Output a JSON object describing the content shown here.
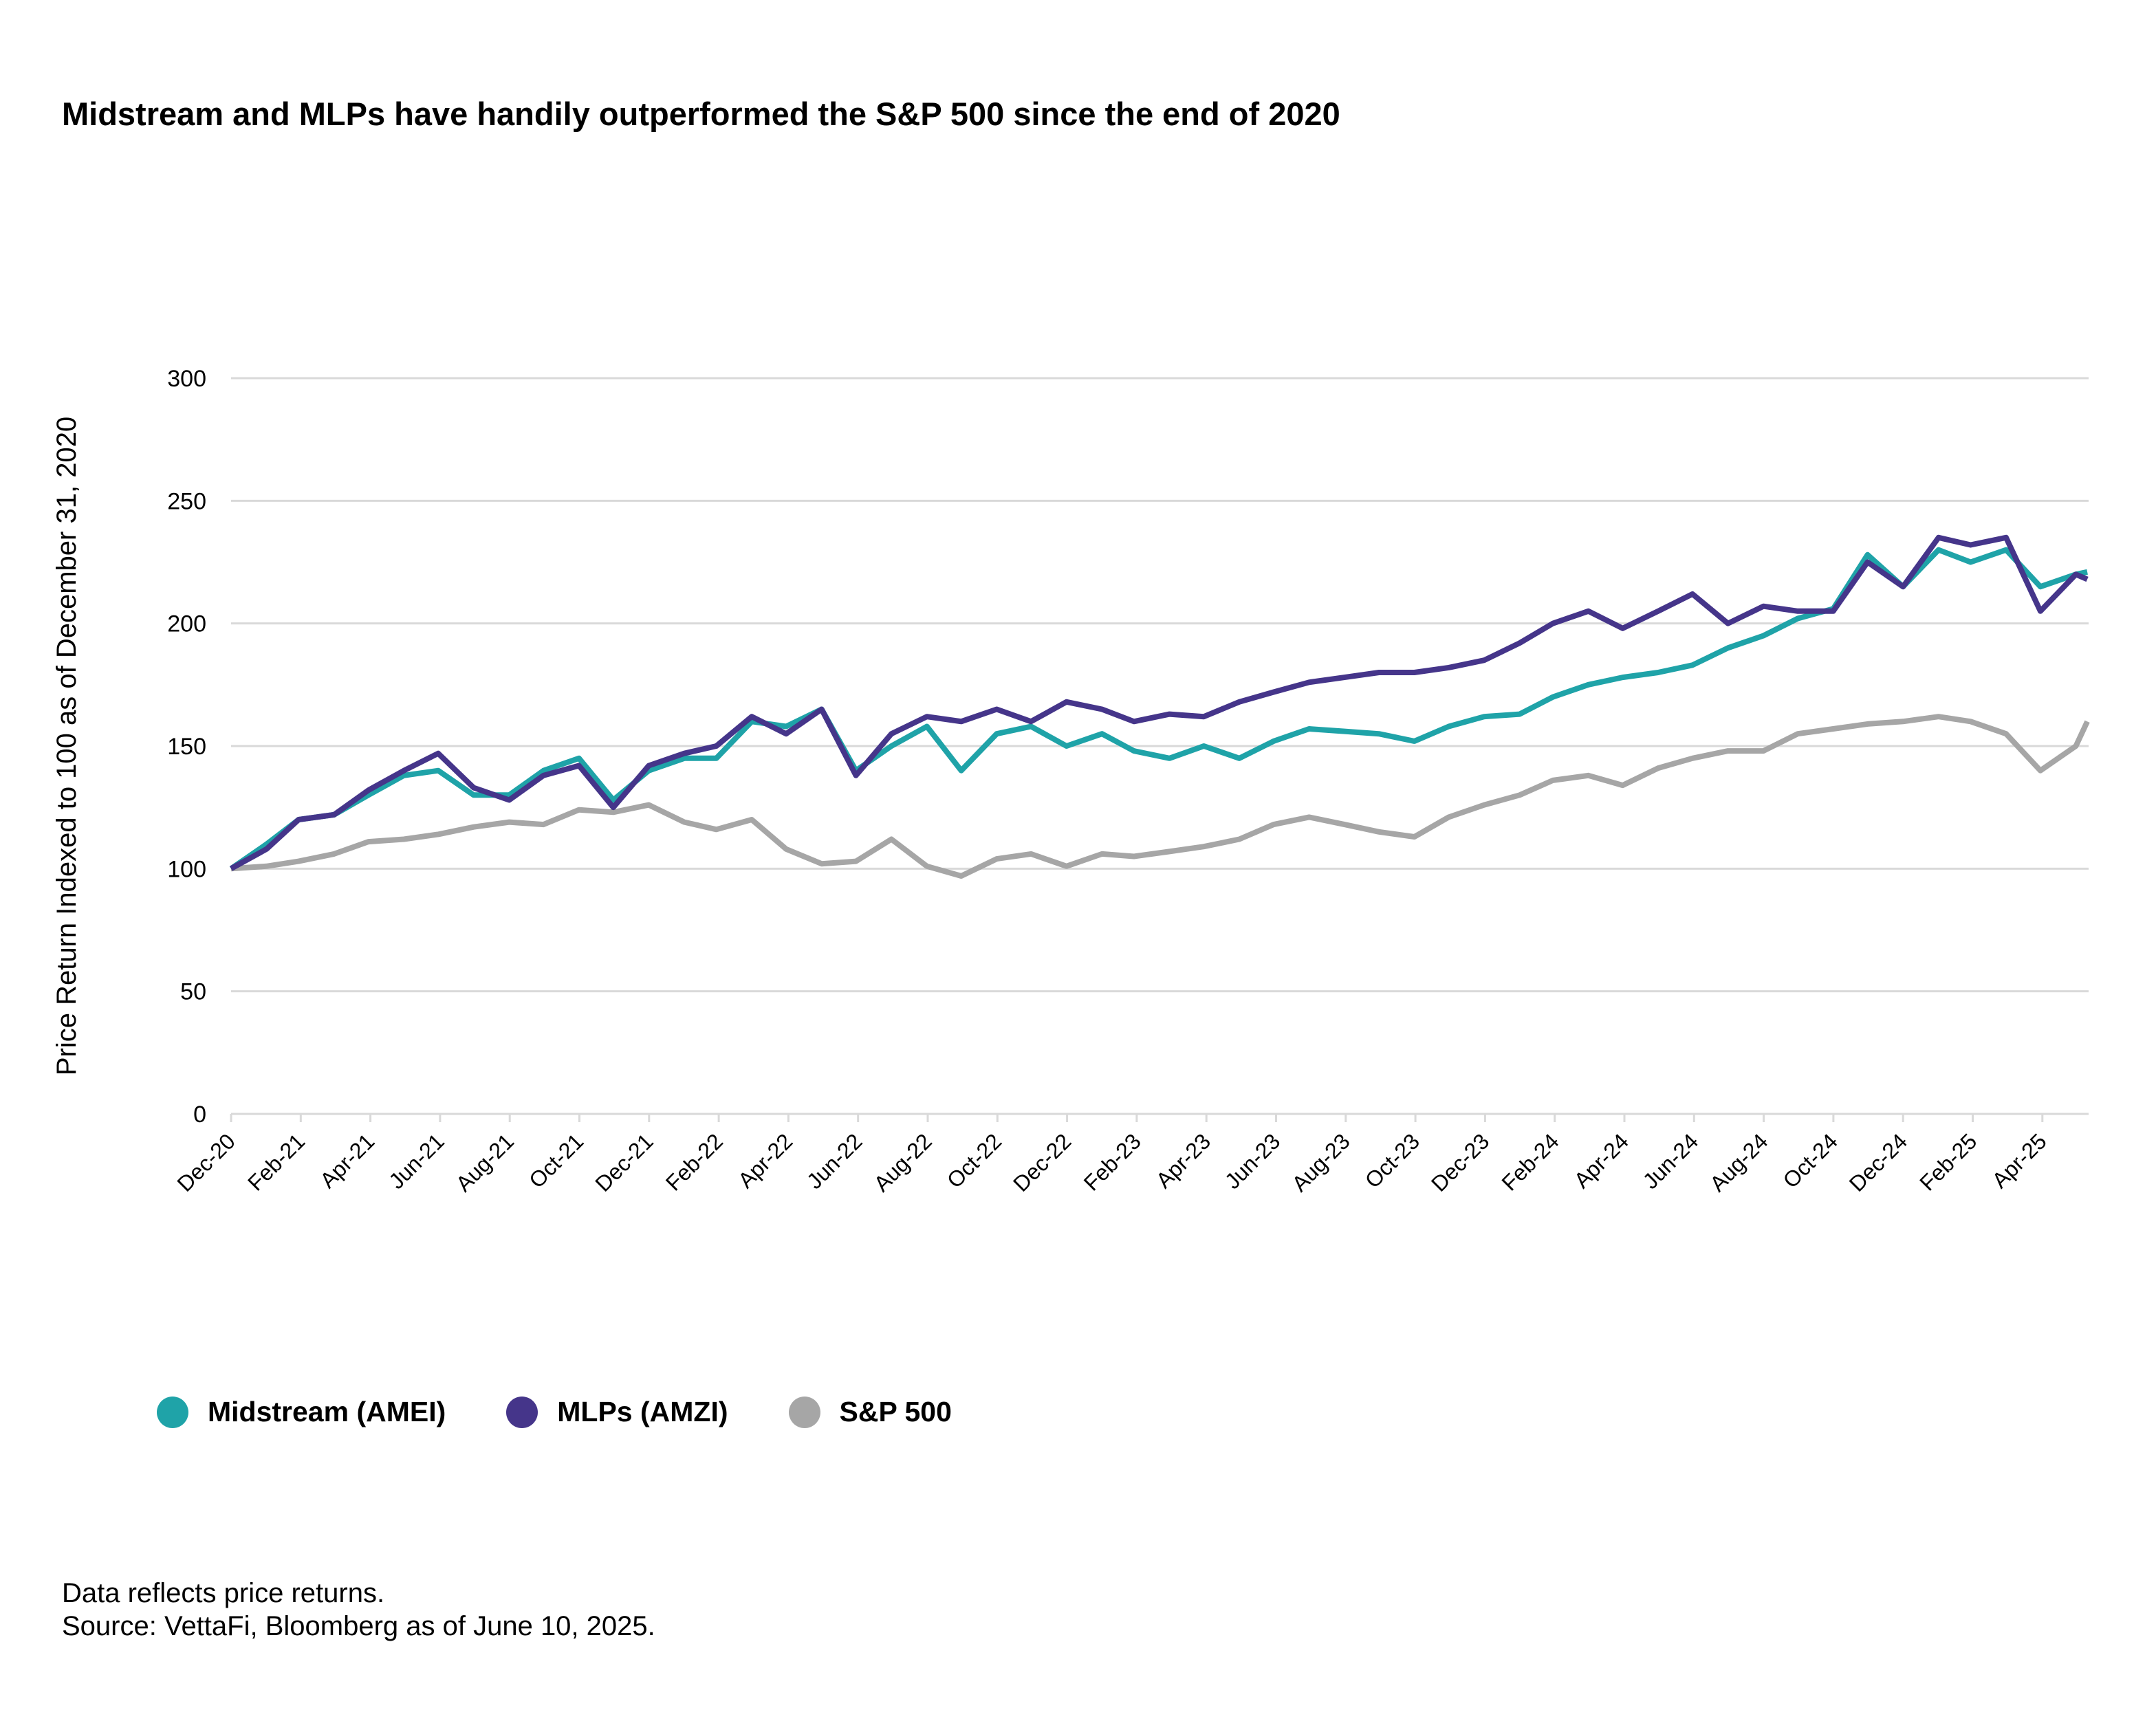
{
  "chart_data": {
    "type": "line",
    "title": "Midstream and MLPs have handily outperformed the S&P 500 since the end of 2020",
    "xlabel": "",
    "ylabel": "Price Return Indexed to 100 as of December 31, 2020",
    "ylim": [
      0,
      300
    ],
    "yticks": [
      "0",
      "50",
      "100",
      "150",
      "200",
      "250",
      "300"
    ],
    "grid": true,
    "legend_position": "bottom-left",
    "xtick_labels": [
      "Dec-20",
      "Feb-21",
      "Apr-21",
      "Jun-21",
      "Aug-21",
      "Oct-21",
      "Dec-21",
      "Feb-22",
      "Apr-22",
      "Jun-22",
      "Aug-22",
      "Oct-22",
      "Dec-22",
      "Feb-23",
      "Apr-23",
      "Jun-23",
      "Aug-23",
      "Oct-23",
      "Dec-23",
      "Feb-24",
      "Apr-24",
      "Jun-24",
      "Aug-24",
      "Oct-24",
      "Dec-24",
      "Feb-25",
      "Apr-25"
    ],
    "x": [
      "2020-12-31",
      "2021-01-31",
      "2021-02-28",
      "2021-03-31",
      "2021-04-30",
      "2021-05-31",
      "2021-06-30",
      "2021-07-31",
      "2021-08-31",
      "2021-09-30",
      "2021-10-31",
      "2021-11-30",
      "2021-12-31",
      "2022-01-31",
      "2022-02-28",
      "2022-03-31",
      "2022-04-30",
      "2022-05-31",
      "2022-06-30",
      "2022-07-31",
      "2022-08-31",
      "2022-09-30",
      "2022-10-31",
      "2022-11-30",
      "2022-12-31",
      "2023-01-31",
      "2023-02-28",
      "2023-03-31",
      "2023-04-30",
      "2023-05-31",
      "2023-06-30",
      "2023-07-31",
      "2023-08-31",
      "2023-09-30",
      "2023-10-31",
      "2023-11-30",
      "2023-12-31",
      "2024-01-31",
      "2024-02-29",
      "2024-03-31",
      "2024-04-30",
      "2024-05-31",
      "2024-06-30",
      "2024-07-31",
      "2024-08-31",
      "2024-09-30",
      "2024-10-31",
      "2024-11-30",
      "2024-12-31",
      "2025-01-31",
      "2025-02-28",
      "2025-03-31",
      "2025-04-30",
      "2025-05-31",
      "2025-06-10"
    ],
    "series": [
      {
        "name": "Midstream (AMEI)",
        "color": "#1fa3a8",
        "values": [
          100,
          110,
          120,
          122,
          130,
          138,
          140,
          130,
          130,
          140,
          145,
          128,
          140,
          145,
          145,
          160,
          158,
          165,
          140,
          150,
          158,
          140,
          155,
          158,
          150,
          155,
          148,
          145,
          150,
          145,
          152,
          157,
          156,
          155,
          152,
          158,
          162,
          163,
          170,
          175,
          178,
          180,
          183,
          190,
          195,
          202,
          206,
          228,
          215,
          230,
          225,
          230,
          215,
          220,
          221
        ]
      },
      {
        "name": "MLPs (AMZI)",
        "color": "#45358a",
        "values": [
          100,
          108,
          120,
          122,
          132,
          140,
          147,
          133,
          128,
          138,
          142,
          125,
          142,
          147,
          150,
          162,
          155,
          165,
          138,
          155,
          162,
          160,
          165,
          160,
          168,
          165,
          160,
          163,
          162,
          168,
          172,
          176,
          178,
          180,
          180,
          182,
          185,
          192,
          200,
          205,
          198,
          205,
          212,
          200,
          207,
          205,
          205,
          225,
          215,
          235,
          232,
          235,
          205,
          220,
          218
        ]
      },
      {
        "name": "S&P 500",
        "color": "#a6a6a6",
        "values": [
          100,
          101,
          103,
          106,
          111,
          112,
          114,
          117,
          119,
          118,
          124,
          123,
          126,
          119,
          116,
          120,
          108,
          102,
          103,
          112,
          101,
          97,
          104,
          106,
          101,
          106,
          105,
          107,
          109,
          112,
          118,
          121,
          118,
          115,
          113,
          121,
          126,
          130,
          136,
          138,
          134,
          141,
          145,
          148,
          148,
          155,
          157,
          159,
          160,
          162,
          160,
          155,
          140,
          150,
          160
        ]
      }
    ]
  },
  "notes": [
    "Data reflects price returns.",
    "Source: VettaFi, Bloomberg as of June 10, 2025."
  ]
}
